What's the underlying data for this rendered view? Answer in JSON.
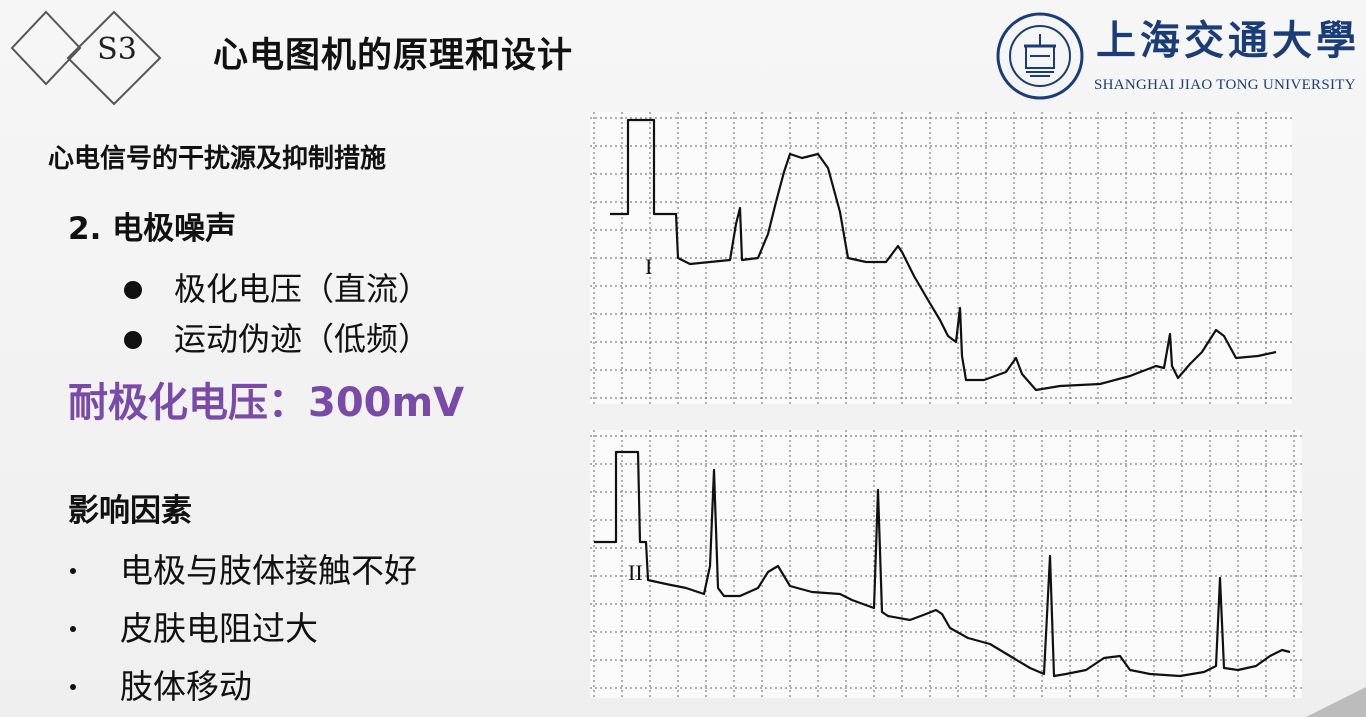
{
  "section": {
    "label": "S3"
  },
  "title": "心电图机的原理和设计",
  "logo": {
    "name_cn": "上海交通大學",
    "name_en": "SHANGHAI JIAO TONG UNIVERSITY",
    "brand_color": "#1a3c78"
  },
  "content": {
    "subtitle": "心电信号的干扰源及抑制措施",
    "heading": "2. 电极噪声",
    "bullets": [
      "极化电压（直流）",
      "运动伪迹（低频）"
    ],
    "highlight": {
      "text": "耐极化电压：300mV",
      "color": "#7a4aa8"
    },
    "factors": {
      "title": "影响因素",
      "items": [
        "电极与肢体接触不好",
        "皮肤电阻过大",
        "肢体移动"
      ]
    }
  },
  "ecg": {
    "lead1_label": "I",
    "lead2_label": "II"
  }
}
